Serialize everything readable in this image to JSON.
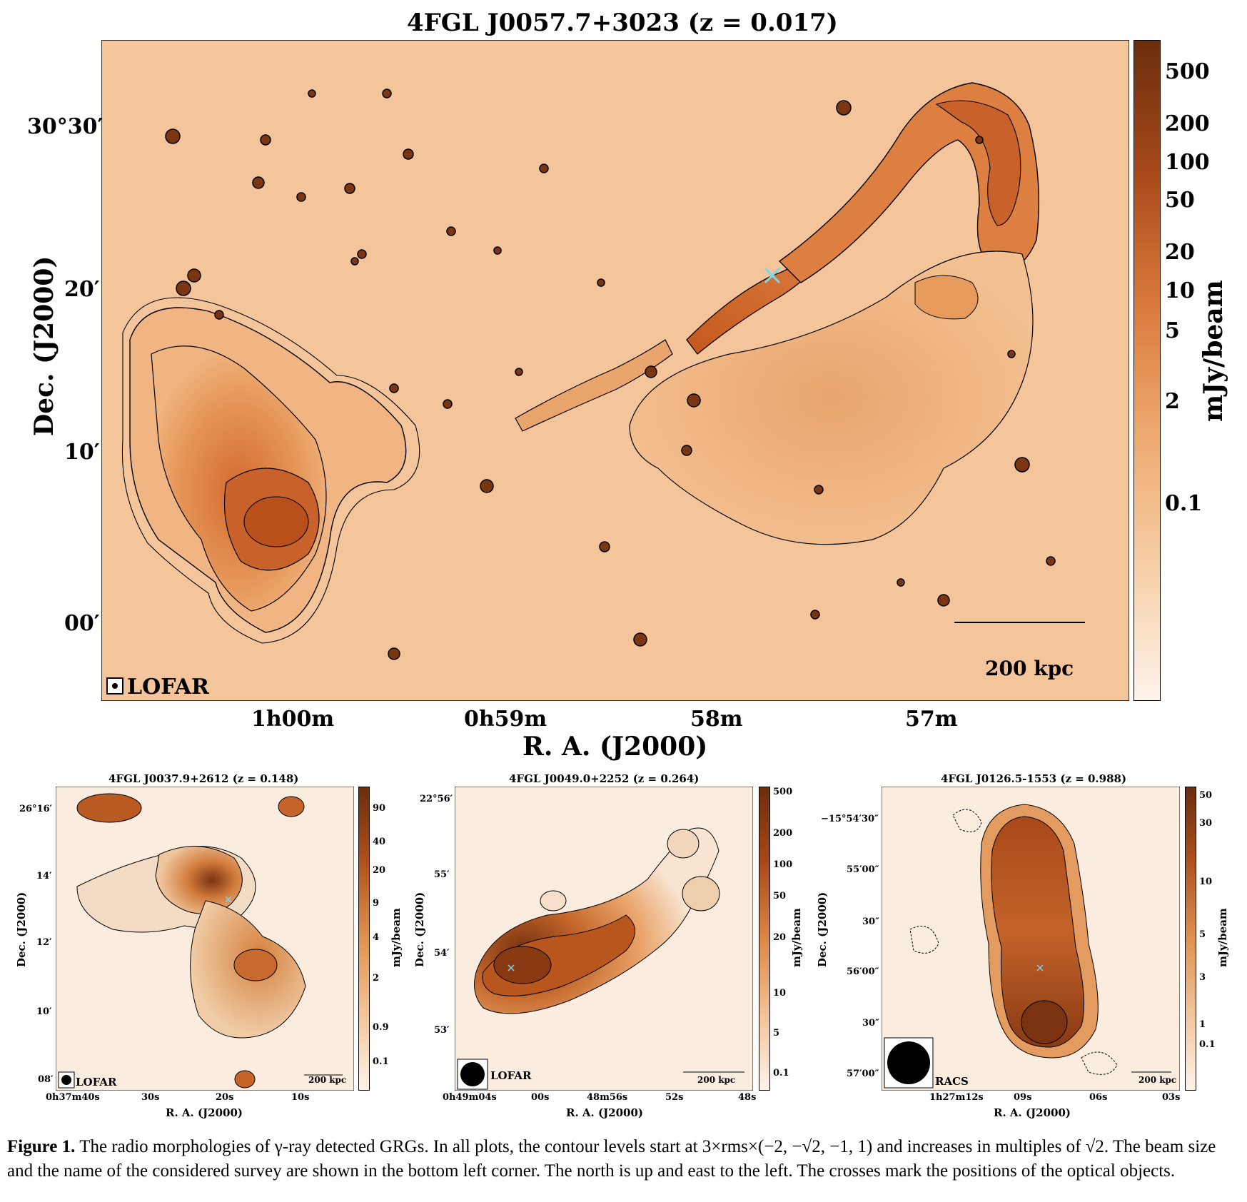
{
  "main_panel": {
    "title": "4FGL J0057.7+3023 (z = 0.017)",
    "y_ticks": [
      "30°30′",
      "20′",
      "10′",
      "00′"
    ],
    "x_ticks": [
      "1h00m",
      "0h59m",
      "58m",
      "57m"
    ],
    "xlabel": "R. A. (J2000)",
    "ylabel": "Dec. (J2000)",
    "colorbar_ticks": [
      "500",
      "200",
      "100",
      "50",
      "20",
      "10",
      "5",
      "2",
      "0.1"
    ],
    "colorbar_label": "mJy/beam",
    "survey": "LOFAR",
    "scale_bar": "200 kpc"
  },
  "panel_a": {
    "title": "4FGL J0037.9+2612 (z = 0.148)",
    "y_ticks": [
      "26°16′",
      "14′",
      "12′",
      "10′",
      "08′"
    ],
    "x_ticks": [
      "0h37m40s",
      "30s",
      "20s",
      "10s"
    ],
    "xlabel": "R. A. (J2000)",
    "ylabel": "Dec. (J2000)",
    "colorbar_ticks": [
      "90",
      "40",
      "20",
      "9",
      "4",
      "2",
      "0.9",
      "0.1"
    ],
    "colorbar_label": "mJy/beam",
    "survey": "LOFAR",
    "scale_bar": "200 kpc"
  },
  "panel_b": {
    "title": "4FGL J0049.0+2252 (z = 0.264)",
    "y_ticks": [
      "22°56′",
      "55′",
      "54′",
      "53′"
    ],
    "x_ticks": [
      "0h49m04s",
      "00s",
      "48m56s",
      "52s",
      "48s"
    ],
    "xlabel": "R. A. (J2000)",
    "ylabel": "Dec. (J2000)",
    "colorbar_ticks": [
      "500",
      "200",
      "100",
      "50",
      "20",
      "10",
      "5",
      "0.1"
    ],
    "colorbar_label": "mJy/beam",
    "survey": "LOFAR",
    "scale_bar": "200 kpc"
  },
  "panel_c": {
    "title": "4FGL J0126.5-1553 (z = 0.988)",
    "y_ticks": [
      "−15°54′30″",
      "55′00″",
      "30″",
      "56′00″",
      "30″",
      "57′00″"
    ],
    "x_ticks": [
      "1h27m12s",
      "09s",
      "06s",
      "03s"
    ],
    "xlabel": "R. A. (J2000)",
    "ylabel": "Dec. (J2000)",
    "colorbar_ticks": [
      "50",
      "30",
      "10",
      "5",
      "3",
      "1",
      "0.1"
    ],
    "colorbar_label": "mJy/beam",
    "survey": "RACS",
    "scale_bar": "200 kpc"
  },
  "caption": {
    "label": "Figure 1.",
    "text": "The radio morphologies of γ-ray detected GRGs. In all plots, the contour levels start at 3×rms×(−2, −√2, −1, 1) and increases in multiples of √2. The beam size and the name of the considered survey are shown in the bottom left corner. The north is up and east to the left. The crosses mark the positions of the optical objects."
  },
  "colors": {
    "background": "#f4c59b",
    "colorbar_top": "#6b2d0c",
    "colorbar_bottom": "#fdf3ea",
    "cross": "#7fd6e8"
  }
}
